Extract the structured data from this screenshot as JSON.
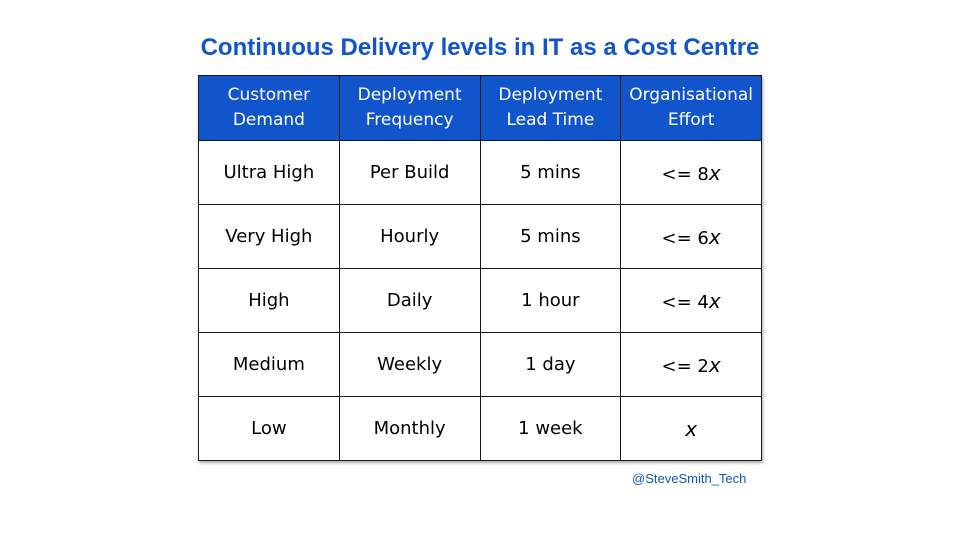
{
  "title": "Continuous Delivery levels in IT as a Cost Centre",
  "table": {
    "headers": [
      [
        "Customer",
        "Demand"
      ],
      [
        "Deployment",
        "Frequency"
      ],
      [
        "Deployment",
        "Lead Time"
      ],
      [
        "Organisational",
        "Effort"
      ]
    ],
    "rows": [
      {
        "demand": "Ultra High",
        "frequency": "Per Build",
        "lead_time": "5 mins",
        "effort_prefix": "<= 8",
        "effort_unit": "x"
      },
      {
        "demand": "Very High",
        "frequency": "Hourly",
        "lead_time": "5 mins",
        "effort_prefix": "<= 6",
        "effort_unit": "x"
      },
      {
        "demand": "High",
        "frequency": "Daily",
        "lead_time": "1 hour",
        "effort_prefix": "<= 4",
        "effort_unit": "x"
      },
      {
        "demand": "Medium",
        "frequency": "Weekly",
        "lead_time": "1 day",
        "effort_prefix": "<= 2",
        "effort_unit": "x"
      },
      {
        "demand": "Low",
        "frequency": "Monthly",
        "lead_time": "1 week",
        "effort_prefix": "",
        "effort_unit": "x"
      }
    ]
  },
  "credit": "@SteveSmith_Tech",
  "colors": {
    "accent": "#1155cc",
    "header_text": "#ffffff",
    "border": "#1a1a1a"
  }
}
